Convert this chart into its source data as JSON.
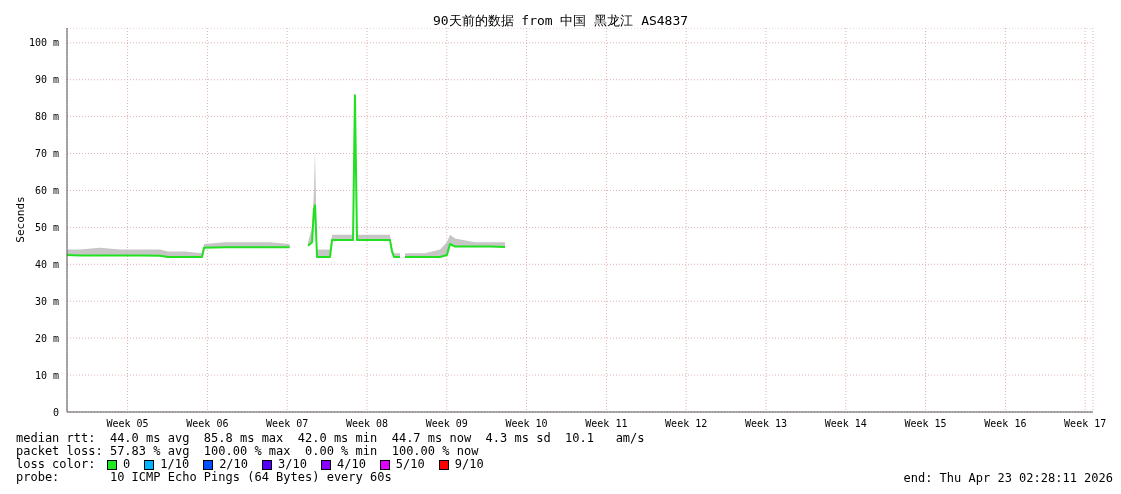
{
  "chart_data": {
    "type": "line",
    "title": "90天前的数据 from 中国 黑龙江 AS4837",
    "ylabel": "Seconds",
    "x": [
      "2026-01-23T02:28",
      "2026-01-24T05:50",
      "2026-01-25T23:50",
      "2026-01-27T18:00",
      "2026-01-29T12:00",
      "2026-01-31T06:20",
      "2026-01-31T23:00",
      "2026-02-02T10:50",
      "2026-02-03T22:40",
      "2026-02-04T03:00",
      "2026-02-05T23:00",
      "2026-02-08T03:40",
      "2026-02-09T21:50",
      "2026-02-11T15:10",
      "2026-02-11T17:00",
      "2026-02-13T05:50",
      "2026-02-13T14:20",
      "2026-02-13T18:30",
      "2026-02-13T20:30",
      "2026-02-14T00:50",
      "2026-02-15T04:10",
      "2026-02-15T08:30",
      "2026-02-16T11:50",
      "2026-02-17T04:40",
      "2026-02-17T08:40",
      "2026-02-17T13:00",
      "2026-02-19T03:00",
      "2026-02-20T10:20",
      "2026-02-20T14:40",
      "2026-02-20T18:50",
      "2026-02-21T07:30",
      "2026-02-21T11:50",
      "2026-02-21T18:00",
      "2026-02-23T12:00",
      "2026-02-24T19:50",
      "2026-02-25T10:20",
      "2026-02-25T16:50",
      "2026-02-26T03:30",
      "2026-02-27T21:30",
      "2026-03-01T05:00",
      "2026-03-02T12:30"
    ],
    "series": [
      {
        "color": "#20e020",
        "values": [
          42.5,
          42.4,
          42.4,
          42.4,
          42.4,
          42.3,
          42,
          42,
          42,
          44.5,
          44.6,
          44.6,
          44.6,
          44.6,
          null,
          45,
          46,
          55,
          56,
          42,
          42,
          46.6,
          46.6,
          46.6,
          85.8,
          46.6,
          46.6,
          46.6,
          43.5,
          42,
          42,
          null,
          42,
          42,
          42,
          42.5,
          45.5,
          44.8,
          44.8,
          44.8,
          44.7
        ],
        "lower": [
          42.5,
          42.4,
          42.4,
          42.4,
          42.4,
          42.3,
          42,
          42,
          42,
          44.5,
          44.6,
          44.6,
          44.6,
          44.6,
          null,
          45,
          46,
          55,
          56,
          42,
          42,
          46.6,
          46.6,
          46.6,
          85.8,
          46.6,
          46.6,
          46.6,
          43.5,
          42,
          42,
          null,
          42,
          42,
          42,
          42.5,
          45.5,
          44.8,
          44.8,
          44.8,
          44.7
        ],
        "upper": [
          44,
          44,
          44.5,
          44,
          44,
          44,
          43.5,
          43.5,
          43,
          45.5,
          46,
          46,
          46,
          45.5,
          null,
          46,
          50,
          60,
          71,
          44,
          44,
          48,
          48,
          48,
          85.8,
          48,
          48,
          48,
          44.5,
          43,
          43,
          null,
          43,
          43,
          44,
          46,
          48,
          47,
          46,
          46,
          46
        ]
      }
    ],
    "xlim": [
      "2026-01-23T02:28",
      "2026-04-23T02:28"
    ],
    "xticks": [
      {
        "value": "2026-01-28T10:00",
        "label": "Week 05"
      },
      {
        "value": "2026-02-04T10:00",
        "label": "Week 06"
      },
      {
        "value": "2026-02-11T10:00",
        "label": "Week 07"
      },
      {
        "value": "2026-02-18T10:00",
        "label": "Week 08"
      },
      {
        "value": "2026-02-25T10:00",
        "label": "Week 09"
      },
      {
        "value": "2026-03-04T10:00",
        "label": "Week 10"
      },
      {
        "value": "2026-03-11T10:00",
        "label": "Week 11"
      },
      {
        "value": "2026-03-18T10:00",
        "label": "Week 12"
      },
      {
        "value": "2026-03-25T10:00",
        "label": "Week 13"
      },
      {
        "value": "2026-04-01T10:00",
        "label": "Week 14"
      },
      {
        "value": "2026-04-08T10:00",
        "label": "Week 15"
      },
      {
        "value": "2026-04-15T10:00",
        "label": "Week 16"
      },
      {
        "value": "2026-04-22T10:00",
        "label": "Week 17"
      }
    ],
    "ylim": [
      0,
      104
    ],
    "yticks": [
      0,
      {
        "value": 10,
        "label": "10 m"
      },
      {
        "value": 20,
        "label": "20 m"
      },
      {
        "value": 30,
        "label": "30 m"
      },
      {
        "value": 40,
        "label": "40 m"
      },
      {
        "value": 50,
        "label": "50 m"
      },
      {
        "value": 60,
        "label": "60 m"
      },
      {
        "value": 70,
        "label": "70 m"
      },
      {
        "value": 80,
        "label": "80 m"
      },
      {
        "value": 90,
        "label": "90 m"
      },
      {
        "value": 100,
        "label": "100 m"
      }
    ],
    "grid": true,
    "legend": false,
    "marker": "none",
    "line_style": "solid",
    "annotations": [
      "median rtt:  44.0 ms avg  85.8 ms max  42.0 ms min  44.7 ms now  4.3 ms sd  10.1   am/s",
      "packet loss: 57.83 % avg  100.00 % max  0.00 % min  100.00 % now",
      "loss color:",
      "0",
      "1/10",
      "2/10",
      "3/10",
      "4/10",
      "5/10",
      "9/10",
      "probe:       10 ICMP Echo Pings (64 Bytes) every 60s",
      "end: Thu Apr 23 02:28:11 2026"
    ]
  }
}
